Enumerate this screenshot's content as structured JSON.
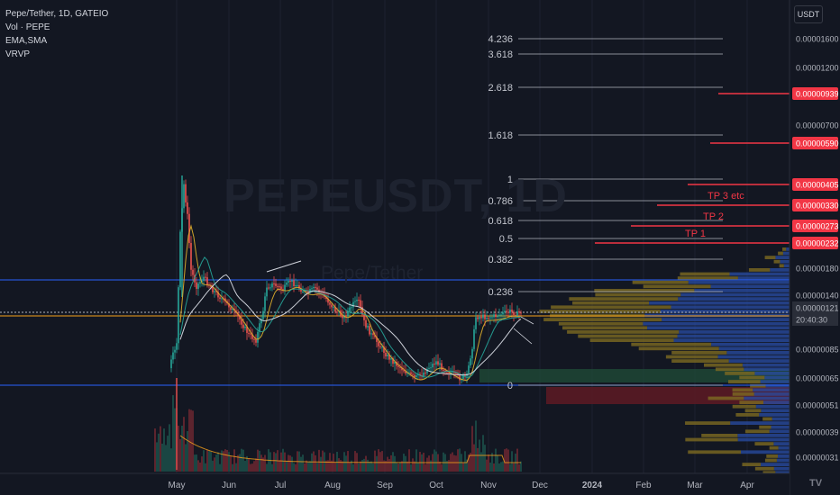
{
  "header": {
    "title": "Pepe/Tether, 1D, GATEIO",
    "indicators": [
      "Vol · PEPE",
      "EMA,SMA",
      "VRVP"
    ]
  },
  "watermark": {
    "symbol": "PEPEUSDT, 1D",
    "name": "Pepe/Tether"
  },
  "currency_button": "USDT",
  "logo": "TV",
  "chart_data": {
    "type": "candlestick",
    "symbol": "PEPEUSDT",
    "timeframe": "1D",
    "x_tick_labels": [
      "May",
      "Jun",
      "Jul",
      "Aug",
      "Sep",
      "Oct",
      "Nov",
      "Dec",
      "2024",
      "Feb",
      "Mar",
      "Apr"
    ],
    "y_tick_labels": [
      "0.00001600",
      "0.00001200",
      "0.00000939",
      "0.00000700",
      "0.00000590",
      "0.00000405",
      "0.00000330",
      "0.00000273",
      "0.00000232",
      "0.00000180",
      "0.00000140",
      "0.00000121",
      "20:40:30",
      "0.00000085",
      "0.00000065",
      "0.00000051",
      "0.00000039",
      "0.00000031"
    ],
    "highlighted_levels": [
      "0.00000939",
      "0.00000590",
      "0.00000405",
      "0.00000330",
      "0.00000273",
      "0.00000232"
    ],
    "current_price": "0.00000121",
    "countdown": "20:40:30",
    "fib_levels": [
      "4.236",
      "3.618",
      "2.618",
      "1.618",
      "1",
      "0.786",
      "0.618",
      "0.5",
      "0.382",
      "0.236",
      "0"
    ],
    "targets": [
      "TP 3 etc",
      "TP 2",
      "TP 1"
    ],
    "colors": {
      "up": "#26a69a",
      "down": "#ef5350",
      "target": "#f23645",
      "blue_line": "#2962ff",
      "orange_line": "#f7a21b",
      "fib": "#b2b5be"
    }
  }
}
